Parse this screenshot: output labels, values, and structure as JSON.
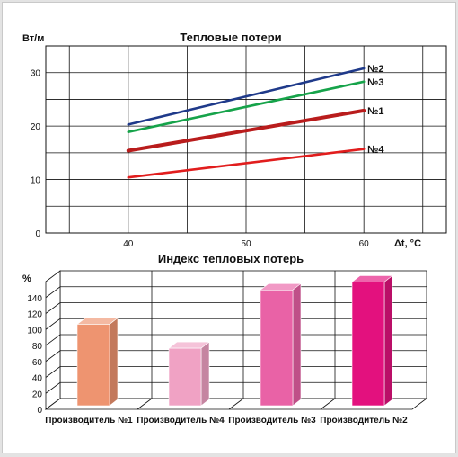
{
  "chart_data": [
    {
      "type": "line",
      "title": "Тепловые потери",
      "ylabel": "Вт/м",
      "xlabel": "Δt, °C",
      "x_ticks": [
        40,
        50,
        60
      ],
      "y_ticks": [
        0,
        10,
        20,
        30
      ],
      "xlim": [
        33,
        67
      ],
      "ylim": [
        0,
        35
      ],
      "grid": true,
      "series": [
        {
          "name": "№2",
          "x": [
            40,
            60
          ],
          "values": [
            20.3,
            30.8
          ],
          "color": "#1f3a8a"
        },
        {
          "name": "№3",
          "x": [
            40,
            60
          ],
          "values": [
            18.9,
            28.3
          ],
          "color": "#16a34a"
        },
        {
          "name": "№1",
          "x": [
            40,
            60
          ],
          "values": [
            15.4,
            22.9
          ],
          "color": "#b91c1c"
        },
        {
          "name": "№4",
          "x": [
            40,
            60
          ],
          "values": [
            10.4,
            15.7
          ],
          "color": "#e11d1d"
        }
      ]
    },
    {
      "type": "bar",
      "title": "Индекс тепловых потерь",
      "ylabel": "%",
      "y_ticks": [
        0,
        20,
        40,
        60,
        80,
        100,
        120,
        140
      ],
      "ylim": [
        0,
        160
      ],
      "grid": true,
      "categories": [
        "Производитель №1",
        "Производитель №4",
        "Производитель №3",
        "Производитель №2"
      ],
      "values": [
        102,
        72,
        145,
        155
      ],
      "colors": [
        "#ee9470",
        "#f0a2c4",
        "#e962a6",
        "#e3117e"
      ]
    }
  ]
}
